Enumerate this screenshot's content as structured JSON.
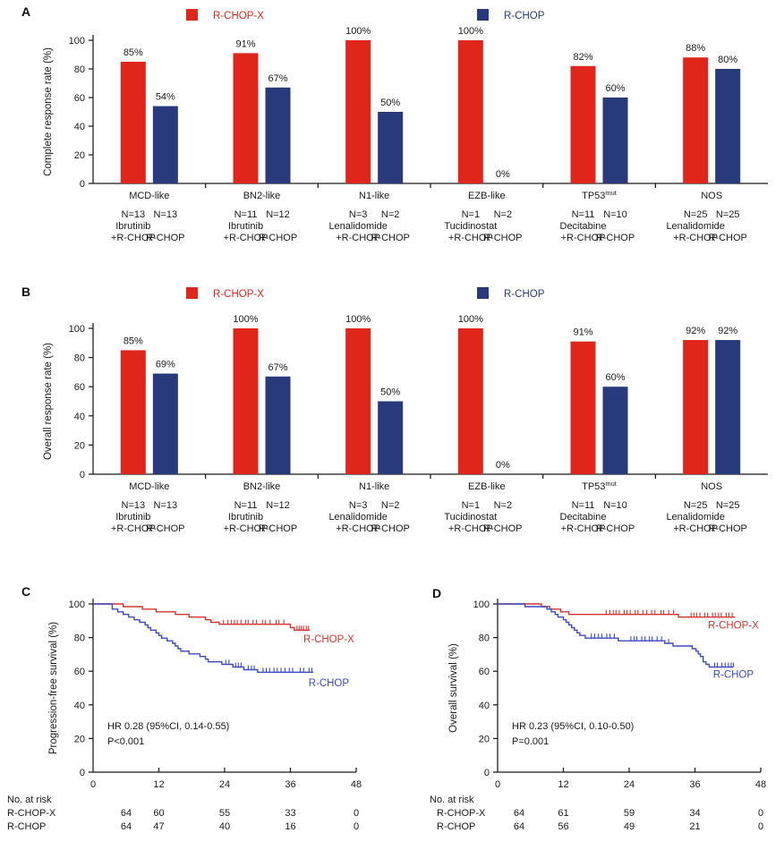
{
  "colors": {
    "bar_red": "#E0251B",
    "bar_blue": "#283A7B",
    "km_red": "#D5352C",
    "km_blue": "#3E49C4",
    "text": "#1a1a1a"
  },
  "chart_data": [
    {
      "id": "A",
      "type": "bar",
      "panel_letter": "A",
      "ylabel": "Complete response rate (%)",
      "ylim": [
        0,
        100
      ],
      "yticks": [
        0,
        20,
        40,
        60,
        80,
        100
      ],
      "legend": [
        {
          "label": "R-CHOP-X",
          "color": "#E0251B"
        },
        {
          "label": "R-CHOP",
          "color": "#283A7B"
        }
      ],
      "groups": [
        {
          "name": "MCD-like",
          "values": [
            85,
            54
          ],
          "value_labels": [
            "85%",
            "54%"
          ],
          "n": [
            "N=13",
            "N=13"
          ],
          "drug": "Ibrutinib",
          "arms": [
            "+R-CHOP",
            "R-CHOP"
          ]
        },
        {
          "name": "BN2-like",
          "values": [
            91,
            67
          ],
          "value_labels": [
            "91%",
            "67%"
          ],
          "n": [
            "N=11",
            "N=12"
          ],
          "drug": "Ibrutinib",
          "arms": [
            "+R-CHOP",
            "R-CHOP"
          ]
        },
        {
          "name": "N1-like",
          "values": [
            100,
            50
          ],
          "value_labels": [
            "100%",
            "50%"
          ],
          "n": [
            "N=3",
            "N=2"
          ],
          "drug": "Lenalidomide",
          "arms": [
            "+R-CHOP",
            "R-CHOP"
          ]
        },
        {
          "name": "EZB-like",
          "values": [
            100,
            0
          ],
          "value_labels": [
            "100%",
            "0%"
          ],
          "n": [
            "N=1",
            "N=2"
          ],
          "drug": "Tucidinostat",
          "arms": [
            "+R-CHOP",
            "R-CHOP"
          ]
        },
        {
          "name": "TP53",
          "name_sup": "mut",
          "values": [
            82,
            60
          ],
          "value_labels": [
            "82%",
            "60%"
          ],
          "n": [
            "N=11",
            "N=10"
          ],
          "drug": "Decitabine",
          "arms": [
            "+R-CHOP",
            "R-CHOP"
          ]
        },
        {
          "name": "NOS",
          "values": [
            88,
            80
          ],
          "value_labels": [
            "88%",
            "80%"
          ],
          "n": [
            "N=25",
            "N=25"
          ],
          "drug": "Lenalidomide",
          "arms": [
            "+R-CHOP",
            "R-CHOP"
          ]
        }
      ]
    },
    {
      "id": "B",
      "type": "bar",
      "panel_letter": "B",
      "ylabel": "Overall response rate (%)",
      "ylim": [
        0,
        100
      ],
      "yticks": [
        0,
        20,
        40,
        60,
        80,
        100
      ],
      "legend": [
        {
          "label": "R-CHOP-X",
          "color": "#E0251B"
        },
        {
          "label": "R-CHOP",
          "color": "#283A7B"
        }
      ],
      "groups": [
        {
          "name": "MCD-like",
          "values": [
            85,
            69
          ],
          "value_labels": [
            "85%",
            "69%"
          ],
          "n": [
            "N=13",
            "N=13"
          ],
          "drug": "Ibrutinib",
          "arms": [
            "+R-CHOP",
            "R-CHOP"
          ]
        },
        {
          "name": "BN2-like",
          "values": [
            100,
            67
          ],
          "value_labels": [
            "100%",
            "67%"
          ],
          "n": [
            "N=11",
            "N=12"
          ],
          "drug": "Ibrutinib",
          "arms": [
            "+R-CHOP",
            "R-CHOP"
          ]
        },
        {
          "name": "N1-like",
          "values": [
            100,
            50
          ],
          "value_labels": [
            "100%",
            "50%"
          ],
          "n": [
            "N=3",
            "N=2"
          ],
          "drug": "Lenalidomide",
          "arms": [
            "+R-CHOP",
            "R-CHOP"
          ]
        },
        {
          "name": "EZB-like",
          "values": [
            100,
            0
          ],
          "value_labels": [
            "100%",
            "0%"
          ],
          "n": [
            "N=1",
            "N=2"
          ],
          "drug": "Tucidinostat",
          "arms": [
            "+R-CHOP",
            "R-CHOP"
          ]
        },
        {
          "name": "TP53",
          "name_sup": "mut",
          "values": [
            91,
            60
          ],
          "value_labels": [
            "91%",
            "60%"
          ],
          "n": [
            "N=11",
            "N=10"
          ],
          "drug": "Decitabine",
          "arms": [
            "+R-CHOP",
            "R-CHOP"
          ]
        },
        {
          "name": "NOS",
          "values": [
            92,
            92
          ],
          "value_labels": [
            "92%",
            "92%"
          ],
          "n": [
            "N=25",
            "N=25"
          ],
          "drug": "Lenalidomide",
          "arms": [
            "+R-CHOP",
            "R-CHOP"
          ]
        }
      ]
    },
    {
      "id": "C",
      "type": "km",
      "panel_letter": "C",
      "ylabel": "Progression-free survival (%)",
      "ylim": [
        0,
        100
      ],
      "yticks": [
        0,
        20,
        40,
        60,
        80,
        100
      ],
      "xlim": [
        0,
        48
      ],
      "xticks": [
        0,
        12,
        24,
        36,
        48
      ],
      "annotation": [
        "HR 0.28 (95%CI, 0.14-0.55)",
        "P<0.001"
      ],
      "series": [
        {
          "name": "R-CHOP-X",
          "color": "#D5352C",
          "end_month": 39.5,
          "label_pos": [
            43,
            77
          ],
          "steps": [
            [
              0,
              100
            ],
            [
              5.5,
              98.4
            ],
            [
              9,
              96.9
            ],
            [
              11.5,
              95.3
            ],
            [
              15,
              93.8
            ],
            [
              17.5,
              92.2
            ],
            [
              20.5,
              90.6
            ],
            [
              21.5,
              89.1
            ],
            [
              23,
              87.9
            ],
            [
              36,
              85.9
            ],
            [
              36.7,
              84.4
            ]
          ],
          "censors": [
            [
              23.8,
              87.9
            ],
            [
              24.6,
              87.9
            ],
            [
              25.2,
              87.9
            ],
            [
              25.8,
              87.9
            ],
            [
              26.3,
              87.9
            ],
            [
              27,
              87.9
            ],
            [
              27.8,
              87.9
            ],
            [
              28.3,
              87.9
            ],
            [
              29.2,
              87.9
            ],
            [
              29.8,
              87.9
            ],
            [
              30.9,
              87.9
            ],
            [
              31.4,
              87.9
            ],
            [
              32.3,
              87.9
            ],
            [
              33.4,
              87.9
            ],
            [
              33.9,
              87.9
            ],
            [
              34.8,
              87.9
            ],
            [
              37.2,
              84.4
            ],
            [
              37.6,
              84.4
            ],
            [
              38,
              84.4
            ],
            [
              38.4,
              84.4
            ],
            [
              38.9,
              84.4
            ],
            [
              39.3,
              84.4
            ]
          ]
        },
        {
          "name": "R-CHOP",
          "color": "#3E49C4",
          "end_month": 40.2,
          "label_pos": [
            43,
            51
          ],
          "steps": [
            [
              0,
              100
            ],
            [
              3.5,
              96.9
            ],
            [
              4.5,
              95.3
            ],
            [
              5.5,
              93.8
            ],
            [
              6.5,
              92.2
            ],
            [
              7.5,
              90.6
            ],
            [
              8.5,
              89.1
            ],
            [
              9.5,
              87.5
            ],
            [
              10,
              85.9
            ],
            [
              10.5,
              84.4
            ],
            [
              11.5,
              82.8
            ],
            [
              12,
              81.3
            ],
            [
              12.5,
              79.7
            ],
            [
              13.5,
              78.1
            ],
            [
              14.5,
              76.6
            ],
            [
              15,
              75
            ],
            [
              15.5,
              73.4
            ],
            [
              16,
              71.9
            ],
            [
              17.5,
              70.3
            ],
            [
              19.5,
              68.8
            ],
            [
              20.5,
              67.2
            ],
            [
              21,
              65.6
            ],
            [
              23.5,
              64.1
            ],
            [
              25.5,
              62.5
            ],
            [
              27.5,
              60.9
            ],
            [
              30,
              59.4
            ]
          ],
          "censors": [
            [
              24.2,
              64.1
            ],
            [
              24.8,
              64.1
            ],
            [
              26,
              62.5
            ],
            [
              26.5,
              62.5
            ],
            [
              27,
              62.5
            ],
            [
              28.3,
              60.9
            ],
            [
              28.9,
              60.9
            ],
            [
              29.4,
              60.9
            ],
            [
              31,
              59.4
            ],
            [
              31.6,
              59.4
            ],
            [
              32.2,
              59.4
            ],
            [
              33,
              59.4
            ],
            [
              33.6,
              59.4
            ],
            [
              34.3,
              59.4
            ],
            [
              35,
              59.4
            ],
            [
              35.8,
              59.4
            ],
            [
              36.4,
              59.4
            ],
            [
              37.8,
              59.4
            ],
            [
              38.4,
              59.4
            ],
            [
              39.4,
              59.4
            ],
            [
              39.9,
              59.4
            ]
          ]
        }
      ],
      "risk_table": {
        "title": "No. at risk",
        "rows": [
          {
            "name": "R-CHOP-X",
            "values": [
              "64",
              "60",
              "55",
              "33",
              "0"
            ]
          },
          {
            "name": "R-CHOP",
            "values": [
              "64",
              "47",
              "40",
              "16",
              "0"
            ]
          }
        ]
      }
    },
    {
      "id": "D",
      "type": "km",
      "panel_letter": "D",
      "ylabel": "Overall survival (%)",
      "ylim": [
        0,
        100
      ],
      "yticks": [
        0,
        20,
        40,
        60,
        80,
        100
      ],
      "xlim": [
        0,
        48
      ],
      "xticks": [
        0,
        12,
        24,
        36,
        48
      ],
      "annotation": [
        "HR 0.23 (95%CI, 0.10-0.50)",
        "P=0.001"
      ],
      "series": [
        {
          "name": "R-CHOP-X",
          "color": "#D5352C",
          "end_month": 43.3,
          "label_pos": [
            43,
            85.5
          ],
          "steps": [
            [
              0,
              100
            ],
            [
              8,
              98.4
            ],
            [
              9.5,
              96.9
            ],
            [
              11.5,
              95.3
            ],
            [
              13,
              93.8
            ],
            [
              33,
              92.2
            ]
          ],
          "censors": [
            [
              19.8,
              93.8
            ],
            [
              20.5,
              93.8
            ],
            [
              21.1,
              93.8
            ],
            [
              21.6,
              93.8
            ],
            [
              22.2,
              93.8
            ],
            [
              23.1,
              93.8
            ],
            [
              23.6,
              93.8
            ],
            [
              24.2,
              93.8
            ],
            [
              25.1,
              93.8
            ],
            [
              25.6,
              93.8
            ],
            [
              26.5,
              93.8
            ],
            [
              27.2,
              93.8
            ],
            [
              28.1,
              93.8
            ],
            [
              28.7,
              93.8
            ],
            [
              29.8,
              93.8
            ],
            [
              30.3,
              93.8
            ],
            [
              31.2,
              93.8
            ],
            [
              32.1,
              93.8
            ],
            [
              35.3,
              92.2
            ],
            [
              35.8,
              92.2
            ],
            [
              36.3,
              92.2
            ],
            [
              36.9,
              92.2
            ],
            [
              37.8,
              92.2
            ],
            [
              38.3,
              92.2
            ],
            [
              39.2,
              92.2
            ],
            [
              39.7,
              92.2
            ],
            [
              40.3,
              92.2
            ],
            [
              40.8,
              92.2
            ],
            [
              41.7,
              92.2
            ],
            [
              42.2,
              92.2
            ],
            [
              42.8,
              92.2
            ]
          ]
        },
        {
          "name": "R-CHOP",
          "color": "#3E49C4",
          "end_month": 43,
          "label_pos": [
            43,
            56
          ],
          "steps": [
            [
              0,
              100
            ],
            [
              5,
              98.4
            ],
            [
              9,
              96.9
            ],
            [
              9.8,
              95.3
            ],
            [
              10.5,
              93.8
            ],
            [
              11,
              92.2
            ],
            [
              12,
              90.6
            ],
            [
              12.5,
              89.1
            ],
            [
              13,
              87.5
            ],
            [
              13.5,
              85.9
            ],
            [
              14,
              84.4
            ],
            [
              14.5,
              82.8
            ],
            [
              15,
              81.3
            ],
            [
              16,
              79.7
            ],
            [
              22,
              78.1
            ],
            [
              30.5,
              76.6
            ],
            [
              32,
              75
            ],
            [
              35.5,
              73.4
            ],
            [
              36.2,
              71.9
            ],
            [
              36.6,
              70.3
            ],
            [
              37,
              68.8
            ],
            [
              37.5,
              65.6
            ],
            [
              38,
              64.1
            ],
            [
              38.6,
              62.5
            ]
          ],
          "censors": [
            [
              17.1,
              79.7
            ],
            [
              17.7,
              79.7
            ],
            [
              18.4,
              79.7
            ],
            [
              19,
              79.7
            ],
            [
              19.9,
              79.7
            ],
            [
              20.5,
              79.7
            ],
            [
              21.3,
              79.7
            ],
            [
              24.3,
              78.1
            ],
            [
              24.9,
              78.1
            ],
            [
              25.4,
              78.1
            ],
            [
              26.3,
              78.1
            ],
            [
              26.9,
              78.1
            ],
            [
              27.7,
              78.1
            ],
            [
              28.2,
              78.1
            ],
            [
              29.1,
              78.1
            ],
            [
              29.9,
              78.1
            ],
            [
              31.2,
              76.6
            ],
            [
              39.6,
              62.5
            ],
            [
              40.1,
              62.5
            ],
            [
              40.9,
              62.5
            ],
            [
              41.5,
              62.5
            ],
            [
              42.1,
              62.5
            ],
            [
              42.6,
              62.5
            ],
            [
              43,
              62.5
            ]
          ]
        }
      ],
      "risk_table": {
        "title": "No. at risk",
        "rows": [
          {
            "name": "R-CHOP-X",
            "values": [
              "64",
              "61",
              "59",
              "34",
              "0"
            ]
          },
          {
            "name": "R-CHOP",
            "values": [
              "64",
              "56",
              "49",
              "21",
              "0"
            ]
          }
        ]
      }
    }
  ]
}
